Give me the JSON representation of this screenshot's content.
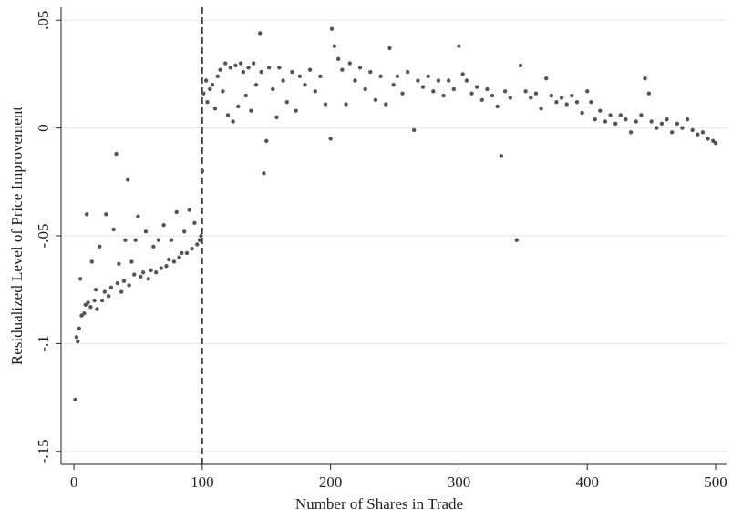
{
  "chart_data": {
    "type": "scatter",
    "x_label": "Number of Shares in Trade",
    "y_label": "Residualized Level of Price Improvement",
    "xlim": [
      -10,
      508.5
    ],
    "ylim": [
      -0.156,
      0.056
    ],
    "xticks": [
      0,
      100,
      200,
      300,
      400,
      500
    ],
    "yticks": [
      {
        "value": 0.05,
        "label": ".05"
      },
      0,
      {
        "value": -0.05,
        "label": "-.05"
      },
      {
        "value": -0.1,
        "label": "-.1"
      },
      {
        "value": -0.15,
        "label": "-.15"
      }
    ],
    "grid": true,
    "xline": 100,
    "color": "#555555",
    "x": [
      1,
      2,
      3,
      4,
      5,
      6,
      8,
      9,
      10,
      11,
      13,
      14,
      16,
      17,
      18,
      20,
      22,
      24,
      25,
      27,
      29,
      31,
      33,
      34,
      35,
      37,
      39,
      40,
      42,
      43,
      45,
      47,
      48,
      50,
      52,
      54,
      56,
      58,
      60,
      62,
      64,
      66,
      68,
      70,
      72,
      74,
      76,
      78,
      80,
      82,
      84,
      86,
      88,
      90,
      92,
      94,
      96,
      98,
      99,
      100,
      101,
      103,
      104,
      106,
      108,
      110,
      112,
      114,
      116,
      118,
      120,
      122,
      124,
      126,
      128,
      130,
      132,
      134,
      136,
      138,
      140,
      142,
      145,
      146,
      148,
      150,
      152,
      155,
      158,
      160,
      163,
      166,
      170,
      173,
      176,
      180,
      184,
      188,
      192,
      196,
      200,
      201,
      203,
      206,
      209,
      212,
      215,
      219,
      223,
      227,
      231,
      235,
      239,
      243,
      246,
      249,
      252,
      256,
      260,
      265,
      268,
      272,
      276,
      280,
      284,
      288,
      292,
      296,
      300,
      303,
      306,
      310,
      314,
      318,
      322,
      326,
      330,
      333,
      336,
      340,
      345,
      348,
      352,
      356,
      360,
      364,
      368,
      372,
      376,
      380,
      384,
      388,
      392,
      396,
      400,
      403,
      406,
      410,
      414,
      418,
      422,
      426,
      430,
      434,
      438,
      442,
      445,
      448,
      450,
      454,
      458,
      462,
      466,
      470,
      474,
      478,
      482,
      486,
      490,
      494,
      498,
      500
    ],
    "y": [
      -0.126,
      -0.097,
      -0.099,
      -0.093,
      -0.07,
      -0.087,
      -0.086,
      -0.082,
      -0.04,
      -0.081,
      -0.083,
      -0.062,
      -0.08,
      -0.075,
      -0.084,
      -0.055,
      -0.08,
      -0.076,
      -0.04,
      -0.078,
      -0.074,
      -0.047,
      -0.012,
      -0.072,
      -0.063,
      -0.076,
      -0.071,
      -0.052,
      -0.024,
      -0.073,
      -0.062,
      -0.068,
      -0.052,
      -0.041,
      -0.069,
      -0.067,
      -0.048,
      -0.07,
      -0.066,
      -0.055,
      -0.067,
      -0.052,
      -0.065,
      -0.045,
      -0.064,
      -0.061,
      -0.052,
      -0.062,
      -0.039,
      -0.06,
      -0.058,
      -0.048,
      -0.058,
      -0.038,
      -0.056,
      -0.044,
      -0.054,
      -0.052,
      -0.05,
      -0.02,
      0.016,
      0.022,
      0.012,
      0.018,
      0.02,
      0.009,
      0.024,
      0.027,
      0.017,
      0.03,
      0.006,
      0.028,
      0.003,
      0.029,
      0.01,
      0.03,
      0.026,
      0.015,
      0.028,
      0.008,
      0.03,
      0.02,
      0.044,
      0.026,
      -0.021,
      -0.006,
      0.028,
      0.018,
      0.005,
      0.028,
      0.022,
      0.012,
      0.026,
      0.008,
      0.024,
      0.02,
      0.027,
      0.017,
      0.024,
      0.011,
      -0.005,
      0.046,
      0.038,
      0.032,
      0.027,
      0.011,
      0.03,
      0.022,
      0.028,
      0.018,
      0.026,
      0.013,
      0.024,
      0.011,
      0.037,
      0.02,
      0.024,
      0.016,
      0.026,
      -0.001,
      0.022,
      0.019,
      0.024,
      0.017,
      0.022,
      0.015,
      0.022,
      0.018,
      0.038,
      0.025,
      0.022,
      0.016,
      0.019,
      0.013,
      0.018,
      0.015,
      0.01,
      -0.013,
      0.017,
      0.014,
      -0.052,
      0.029,
      0.017,
      0.014,
      0.016,
      0.009,
      0.023,
      0.015,
      0.012,
      0.014,
      0.011,
      0.015,
      0.012,
      0.007,
      0.017,
      0.012,
      0.004,
      0.008,
      0.003,
      0.006,
      0.002,
      0.006,
      0.004,
      -0.002,
      0.003,
      0.006,
      0.023,
      0.016,
      0.003,
      0.0,
      0.002,
      0.004,
      -0.002,
      0.002,
      0.0,
      0.004,
      -0.001,
      -0.003,
      -0.002,
      -0.005,
      -0.006,
      -0.007
    ]
  }
}
